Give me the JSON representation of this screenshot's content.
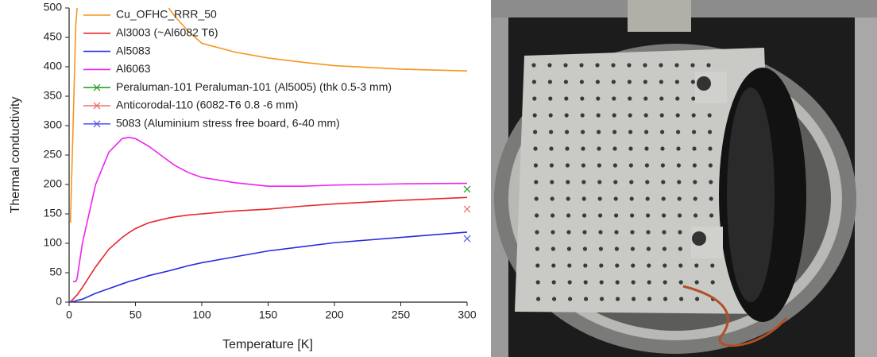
{
  "chart_data": {
    "type": "line",
    "x_label": "Temperature [K]",
    "y_label": "Thermal conductivity",
    "xlim": [
      0,
      300
    ],
    "xticks": [
      0,
      50,
      100,
      150,
      200,
      250,
      300
    ],
    "ylim": [
      0,
      500
    ],
    "yticks": [
      0,
      50,
      100,
      150,
      200,
      250,
      300,
      350,
      400,
      450,
      500
    ],
    "legend": "top-left",
    "x": [
      1,
      3,
      5,
      6,
      10,
      20,
      30,
      40,
      45,
      50,
      60,
      75,
      80,
      90,
      100,
      125,
      150,
      175,
      200,
      250,
      300
    ],
    "series": [
      {
        "name": "Cu_OFHC_RRR_50",
        "color": "#f5961e",
        "values": [
          135,
          300,
          470,
          500,
          null,
          null,
          null,
          null,
          null,
          null,
          null,
          500,
          485,
          460,
          440,
          425,
          415,
          408,
          402,
          396,
          393
        ]
      },
      {
        "name": "Al3003  (~Al6082 T6)",
        "color": "#e8262a",
        "values": [
          1,
          5,
          10,
          12,
          25,
          60,
          90,
          110,
          118,
          125,
          135,
          143,
          145,
          148,
          150,
          155,
          158,
          163,
          167,
          173,
          178
        ]
      },
      {
        "name": "Al5083",
        "color": "#2a2ae0",
        "values": [
          0,
          1,
          2,
          3,
          5,
          15,
          23,
          31,
          35,
          38,
          45,
          53,
          56,
          62,
          67,
          77,
          87,
          94,
          101,
          110,
          119
        ]
      },
      {
        "name": "Al6063",
        "color": "#ee22ee",
        "values": [
          null,
          35,
          35,
          40,
          100,
          200,
          255,
          278,
          280,
          278,
          265,
          240,
          232,
          220,
          212,
          203,
          197,
          197,
          199,
          201,
          202
        ]
      },
      {
        "name": "Peraluman-101 Peraluman-101 (Al5005) (thk 0.5-3 mm)",
        "color": "#2ca02c",
        "marker": "x",
        "values": [
          null,
          null,
          null,
          null,
          null,
          null,
          null,
          null,
          null,
          null,
          null,
          null,
          null,
          null,
          null,
          null,
          null,
          null,
          null,
          null,
          192
        ]
      },
      {
        "name": "Anticorodal-110 (6082-T6 0.8 -6 mm)",
        "color": "#f07070",
        "marker": "x",
        "values": [
          null,
          null,
          null,
          null,
          null,
          null,
          null,
          null,
          null,
          null,
          null,
          null,
          null,
          null,
          null,
          null,
          null,
          null,
          null,
          null,
          158
        ]
      },
      {
        "name": "5083 (Aluminium stress free board, 6-40 mm)",
        "color": "#5a5af0",
        "marker": "x",
        "values": [
          null,
          null,
          null,
          null,
          null,
          null,
          null,
          null,
          null,
          null,
          null,
          null,
          null,
          null,
          null,
          null,
          null,
          null,
          null,
          null,
          108
        ]
      }
    ]
  }
}
